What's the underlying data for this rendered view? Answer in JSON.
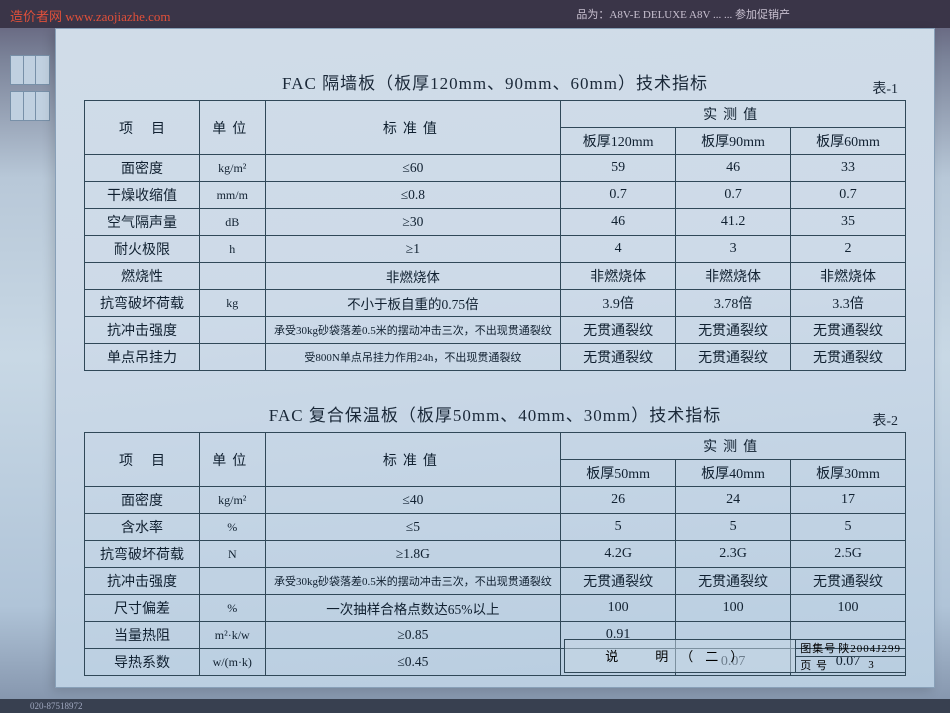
{
  "watermark": "造价者网 www.zaojiazhe.com",
  "top_right": "品为：A8V-E DELUXE  A8V ...  ... 参加促销产",
  "table1": {
    "title": "FAC 隔墙板（板厚120mm、90mm、60mm）技术指标",
    "label": "表-1",
    "headers": {
      "item": "项目",
      "unit": "单位",
      "std": "标准值",
      "measured": "实测值",
      "t120": "板厚120mm",
      "t90": "板厚90mm",
      "t60": "板厚60mm"
    },
    "rows": [
      {
        "item": "面密度",
        "unit": "kg/m²",
        "std": "≤60",
        "v120": "59",
        "v90": "46",
        "v60": "33"
      },
      {
        "item": "干燥收缩值",
        "unit": "mm/m",
        "std": "≤0.8",
        "v120": "0.7",
        "v90": "0.7",
        "v60": "0.7"
      },
      {
        "item": "空气隔声量",
        "unit": "dB",
        "std": "≥30",
        "v120": "46",
        "v90": "41.2",
        "v60": "35"
      },
      {
        "item": "耐火极限",
        "unit": "h",
        "std": "≥1",
        "v120": "4",
        "v90": "3",
        "v60": "2"
      },
      {
        "item": "燃烧性",
        "unit": "",
        "std": "非燃烧体",
        "v120": "非燃烧体",
        "v90": "非燃烧体",
        "v60": "非燃烧体"
      },
      {
        "item": "抗弯破坏荷载",
        "unit": "kg",
        "std": "不小于板自重的0.75倍",
        "v120": "3.9倍",
        "v90": "3.78倍",
        "v60": "3.3倍"
      },
      {
        "item": "抗冲击强度",
        "unit": "",
        "std": "承受30kg砂袋落差0.5米的摆动冲击三次，不出现贯通裂纹",
        "small": true,
        "v120": "无贯通裂纹",
        "v90": "无贯通裂纹",
        "v60": "无贯通裂纹"
      },
      {
        "item": "单点吊挂力",
        "unit": "",
        "std": "受800N单点吊挂力作用24h，不出现贯通裂纹",
        "small": true,
        "v120": "无贯通裂纹",
        "v90": "无贯通裂纹",
        "v60": "无贯通裂纹"
      }
    ]
  },
  "table2": {
    "title": "FAC 复合保温板（板厚50mm、40mm、30mm）技术指标",
    "label": "表-2",
    "headers": {
      "item": "项目",
      "unit": "单位",
      "std": "标准值",
      "measured": "实测值",
      "t50": "板厚50mm",
      "t40": "板厚40mm",
      "t30": "板厚30mm"
    },
    "rows": [
      {
        "item": "面密度",
        "unit": "kg/m²",
        "std": "≤40",
        "v50": "26",
        "v40": "24",
        "v30": "17"
      },
      {
        "item": "含水率",
        "unit": "%",
        "std": "≤5",
        "v50": "5",
        "v40": "5",
        "v30": "5"
      },
      {
        "item": "抗弯破坏荷载",
        "unit": "N",
        "std": "≥1.8G",
        "v50": "4.2G",
        "v40": "2.3G",
        "v30": "2.5G"
      },
      {
        "item": "抗冲击强度",
        "unit": "",
        "std": "承受30kg砂袋落差0.5米的摆动冲击三次，不出现贯通裂纹",
        "small": true,
        "v50": "无贯通裂纹",
        "v40": "无贯通裂纹",
        "v30": "无贯通裂纹"
      },
      {
        "item": "尺寸偏差",
        "unit": "%",
        "std": "一次抽样合格点数达65%以上",
        "v50": "100",
        "v40": "100",
        "v30": "100"
      },
      {
        "item": "当量热阻",
        "unit": "m²·k/w",
        "std": "≥0.85",
        "v50": "0.91",
        "v40": "",
        "v30": ""
      },
      {
        "item": "导热系数",
        "unit": "w/(m·k)",
        "std": "≤0.45",
        "v50": "",
        "v40": "0.07",
        "v30": "0.07"
      }
    ]
  },
  "footer": {
    "shuo": "说　明（二）",
    "atlas_k": "图集号",
    "atlas_v": "陕2004J299",
    "page_k": "页 号",
    "page_v": "3"
  },
  "bottom": "020-87518972"
}
